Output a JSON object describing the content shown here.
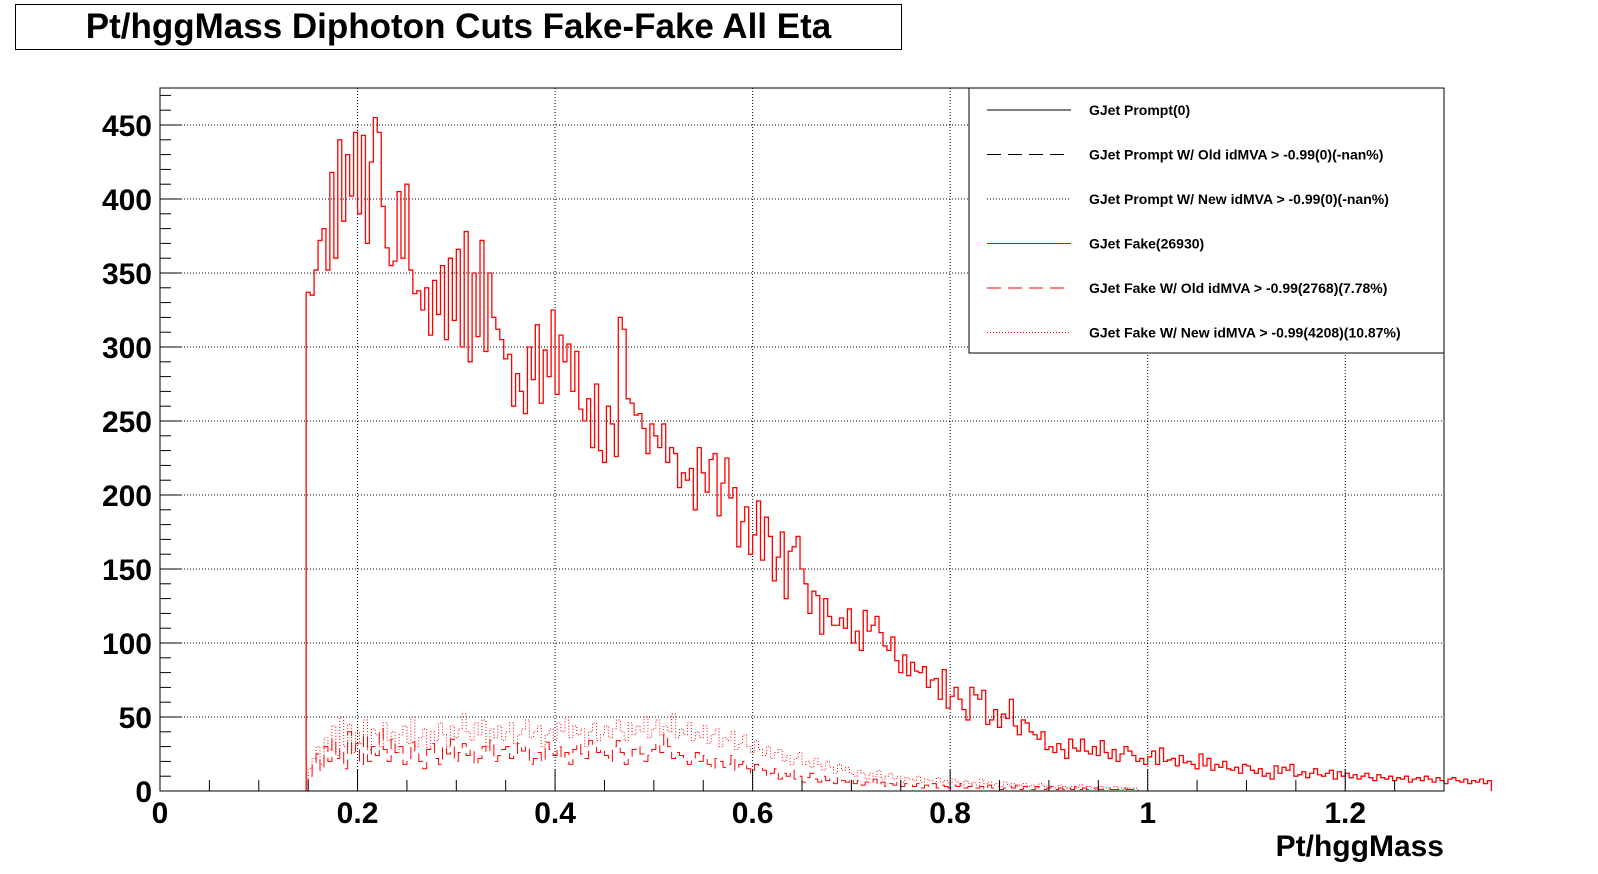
{
  "chart_data": {
    "type": "step-histogram",
    "title": "Pt/hggMass Diphoton Cuts Fake-Fake All Eta",
    "xlabel": "Pt/hggMass",
    "ylabel": "",
    "xlim": [
      0,
      1.3
    ],
    "ylim": [
      0,
      475
    ],
    "grid": true,
    "legend_position": "top-right",
    "x_ticks": [
      0,
      0.2,
      0.4,
      0.6,
      0.8,
      1,
      1.2
    ],
    "x_tick_labels": [
      "0",
      "0.2",
      "0.4",
      "0.6",
      "0.8",
      "1",
      "1.2"
    ],
    "y_ticks": [
      0,
      50,
      100,
      150,
      200,
      250,
      300,
      350,
      400,
      450
    ],
    "y_tick_labels": [
      "0",
      "50",
      "100",
      "150",
      "200",
      "250",
      "300",
      "350",
      "400",
      "450"
    ],
    "bin_width": 0.004,
    "series": [
      {
        "name": "GJet Prompt(0)",
        "color": "#000000",
        "style": "solid",
        "start": 0.15,
        "values": []
      },
      {
        "name": "GJet Prompt W/ Old idMVA > -0.99(0)(-nan%)",
        "color": "#000000",
        "style": "dashed",
        "start": 0.15,
        "values": []
      },
      {
        "name": "GJet Prompt W/ New idMVA > -0.99(0)(-nan%)",
        "color": "#000000",
        "style": "dotted",
        "start": 0.15,
        "values": []
      },
      {
        "name": "GJet Fake(26930)",
        "color": "#ff0000",
        "style": "solid",
        "start": 0.148,
        "values": [
          337,
          335,
          352,
          372,
          380,
          352,
          418,
          360,
          440,
          385,
          430,
          402,
          445,
          390,
          443,
          370,
          425,
          455,
          445,
          395,
          367,
          355,
          358,
          405,
          360,
          410,
          352,
          336,
          338,
          325,
          340,
          308,
          345,
          322,
          355,
          305,
          360,
          318,
          366,
          300,
          378,
          290,
          350,
          307,
          372,
          297,
          350,
          320,
          312,
          305,
          292,
          295,
          260,
          282,
          270,
          255,
          300,
          278,
          315,
          262,
          298,
          280,
          325,
          268,
          308,
          290,
          302,
          270,
          297,
          258,
          250,
          265,
          232,
          275,
          230,
          222,
          260,
          248,
          226,
          320,
          312,
          265,
          262,
          254,
          255,
          245,
          228,
          248,
          240,
          232,
          248,
          222,
          232,
          228,
          205,
          215,
          210,
          218,
          190,
          232,
          215,
          202,
          224,
          228,
          186,
          208,
          225,
          198,
          205,
          165,
          182,
          192,
          160,
          173,
          196,
          156,
          185,
          172,
          142,
          158,
          175,
          130,
          162,
          165,
          172,
          150,
          140,
          120,
          135,
          132,
          106,
          130,
          118,
          112,
          112,
          117,
          110,
          123,
          100,
          108,
          95,
          122,
          108,
          112,
          118,
          107,
          98,
          95,
          104,
          88,
          80,
          92,
          78,
          87,
          81,
          80,
          84,
          70,
          75,
          76,
          62,
          82,
          56,
          64,
          70,
          62,
          55,
          48,
          70,
          65,
          62,
          68,
          45,
          48,
          55,
          43,
          52,
          49,
          62,
          44,
          38,
          48,
          46,
          40,
          38,
          35,
          40,
          28,
          30,
          26,
          32,
          28,
          22,
          35,
          29,
          27,
          35,
          27,
          25,
          30,
          24,
          34,
          26,
          22,
          28,
          20,
          25,
          30,
          27,
          24,
          20,
          22,
          18,
          23,
          27,
          18,
          29,
          20,
          21,
          22,
          17,
          24,
          19,
          20,
          18,
          15,
          25,
          17,
          22,
          14,
          18,
          16,
          20,
          15,
          14,
          16,
          12,
          18,
          17,
          14,
          12,
          15,
          10,
          12,
          8,
          17,
          12,
          16,
          14,
          18,
          10,
          11,
          13,
          9,
          12,
          15,
          11,
          10,
          12,
          14,
          8,
          13,
          10,
          12,
          9,
          11,
          8,
          10,
          12,
          9,
          7,
          11,
          9,
          8,
          10,
          7,
          9,
          8,
          10,
          6,
          8,
          9,
          7,
          10,
          8,
          6,
          9,
          7,
          5,
          8,
          9,
          7,
          6,
          8,
          5,
          7,
          6,
          8,
          5,
          7
        ]
      },
      {
        "name": "GJet Fake W/ Old idMVA > -0.99(2768)(7.78%)",
        "color": "#ff0000",
        "style": "dashed",
        "start": 0.15,
        "values": [
          10,
          18,
          25,
          14,
          30,
          20,
          35,
          22,
          28,
          15,
          40,
          25,
          32,
          18,
          38,
          20,
          30,
          24,
          42,
          28,
          20,
          35,
          26,
          30,
          18,
          22,
          33,
          27,
          20,
          15,
          28,
          32,
          22,
          18,
          30,
          25,
          35,
          20,
          26,
          32,
          24,
          28,
          18,
          22,
          30,
          26,
          34,
          20,
          24,
          28,
          30,
          22,
          25,
          32,
          27,
          30,
          18,
          22,
          26,
          20,
          33,
          28,
          24,
          30,
          22,
          26,
          18,
          28,
          32,
          25,
          22,
          34,
          30,
          26,
          28,
          24,
          20,
          30,
          34,
          26,
          18,
          22,
          28,
          30,
          25,
          20,
          24,
          28,
          32,
          26,
          38,
          30,
          22,
          26,
          24,
          20,
          18,
          22,
          26,
          20,
          24,
          18,
          15,
          22,
          20,
          16,
          18,
          24,
          14,
          18,
          20,
          15,
          12,
          18,
          16,
          14,
          10,
          12,
          15,
          8,
          12,
          10,
          14,
          8,
          10,
          6,
          9,
          12,
          8,
          6,
          10,
          7,
          8,
          5,
          9,
          7,
          6,
          8,
          5,
          7,
          4,
          6,
          5,
          8,
          4,
          6,
          3,
          5,
          4,
          6,
          3,
          5,
          4,
          3,
          5,
          2,
          4,
          3,
          5,
          2,
          4,
          3,
          2,
          4,
          3,
          5,
          2,
          3,
          4,
          2,
          3,
          1,
          4,
          2,
          3,
          1,
          2,
          3,
          2,
          4,
          1,
          3,
          2,
          1,
          3,
          2,
          1,
          2,
          3,
          1,
          2,
          1,
          2,
          1,
          3,
          1,
          2,
          1,
          1,
          2,
          1,
          1,
          2,
          1,
          1,
          1,
          2,
          1,
          1,
          1
        ]
      },
      {
        "name": "GJet Fake W/ New idMVA > -0.99(4208)(10.87%)",
        "color": "#ff0000",
        "style": "dotted",
        "start": 0.15,
        "values": [
          15,
          22,
          30,
          18,
          36,
          28,
          44,
          24,
          50,
          30,
          45,
          26,
          40,
          32,
          48,
          28,
          42,
          38,
          30,
          46,
          34,
          40,
          26,
          38,
          44,
          32,
          50,
          30,
          36,
          42,
          28,
          40,
          34,
          46,
          38,
          30,
          44,
          36,
          42,
          52,
          40,
          34,
          46,
          38,
          48,
          30,
          42,
          36,
          44,
          34,
          40,
          46,
          32,
          38,
          42,
          48,
          36,
          40,
          44,
          30,
          38,
          42,
          34,
          46,
          40,
          50,
          36,
          44,
          38,
          42,
          30,
          40,
          46,
          34,
          38,
          44,
          36,
          42,
          48,
          40,
          34,
          46,
          38,
          44,
          40,
          50,
          36,
          42,
          48,
          38,
          44,
          40,
          52,
          36,
          42,
          38,
          46,
          34,
          40,
          36,
          44,
          32,
          38,
          42,
          30,
          36,
          34,
          40,
          28,
          32,
          38,
          30,
          26,
          34,
          28,
          24,
          30,
          22,
          26,
          28,
          20,
          24,
          18,
          22,
          26,
          18,
          20,
          16,
          22,
          18,
          14,
          20,
          16,
          12,
          18,
          14,
          16,
          12,
          10,
          14,
          12,
          8,
          12,
          10,
          14,
          8,
          10,
          12,
          8,
          10,
          6,
          9,
          8,
          7,
          10,
          6,
          8,
          7,
          5,
          9,
          6,
          7,
          5,
          8,
          6,
          4,
          7,
          5,
          6,
          4,
          8,
          5,
          6,
          4,
          5,
          3,
          6,
          4,
          5,
          3,
          4,
          5,
          3,
          4,
          2,
          5,
          3,
          4,
          3,
          2,
          4,
          3,
          2,
          3,
          2,
          4,
          2,
          3,
          2,
          1,
          3,
          2,
          2,
          1,
          3,
          2,
          1,
          2,
          1,
          2
        ]
      }
    ]
  }
}
